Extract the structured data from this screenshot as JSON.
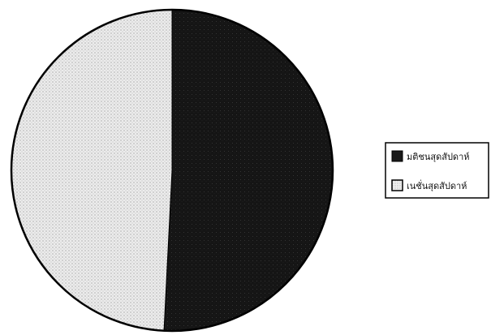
{
  "chart_data": {
    "type": "pie",
    "title": "",
    "slices": [
      {
        "label": "มติชนสุดสัปดาห์",
        "value": 50.8,
        "color": "#1a1a1a",
        "pattern": "dark-stipple"
      },
      {
        "label": "เนชั่นสุดสัปดาห์",
        "value": 49.2,
        "color": "#e6e6e6",
        "pattern": "light-dots"
      }
    ],
    "legend_position": "right"
  }
}
